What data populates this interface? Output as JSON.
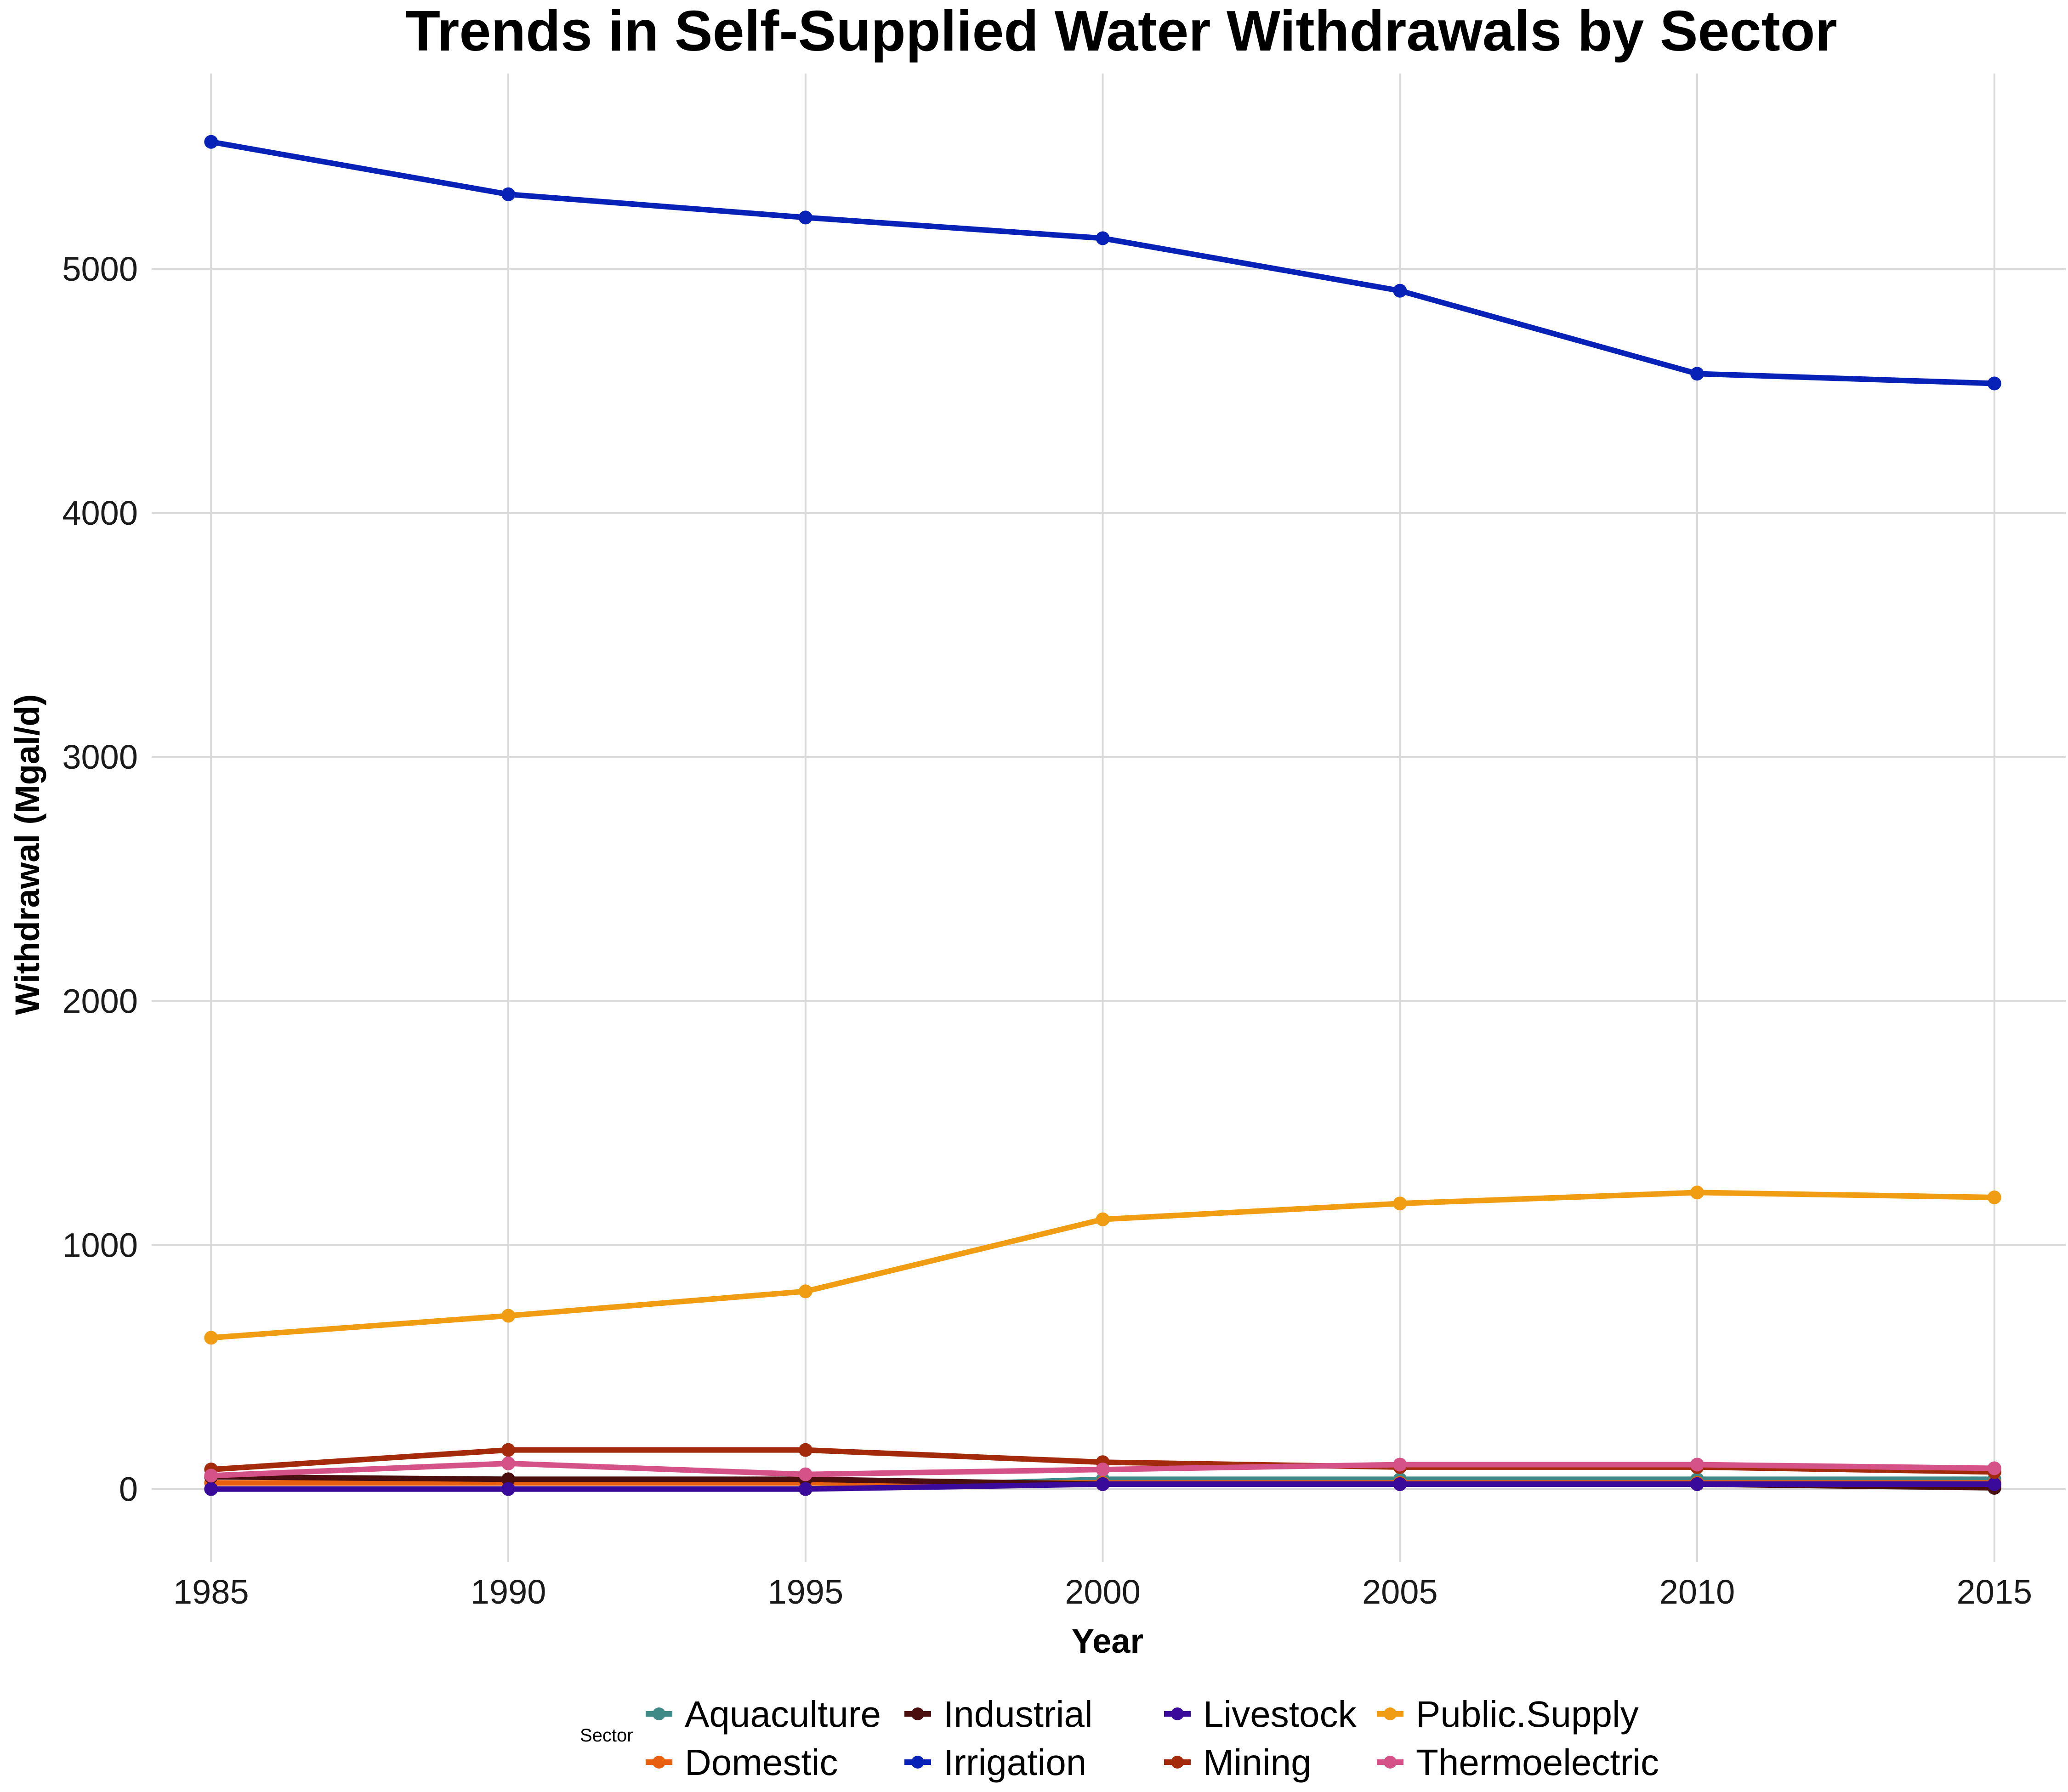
{
  "chart_data": {
    "type": "line",
    "title": "Trends in Self-Supplied Water Withdrawals by Sector",
    "xlabel": "Year",
    "ylabel": "Withdrawal (Mgal/d)",
    "x": [
      1985,
      1990,
      1995,
      2000,
      2005,
      2010,
      2015
    ],
    "x_ticks": [
      "1985",
      "1990",
      "1995",
      "2000",
      "2005",
      "2010",
      "2015"
    ],
    "y_ticks": [
      "0",
      "1000",
      "2000",
      "3000",
      "4000",
      "5000"
    ],
    "y_tick_values": [
      0,
      1000,
      2000,
      3000,
      4000,
      5000
    ],
    "xlim": [
      1984,
      2016.2
    ],
    "ylim": [
      -300,
      5800
    ],
    "grid": true,
    "legend_title": "Sector",
    "legend_position": "bottom",
    "series": [
      {
        "name": "Aquaculture",
        "color": "#3f8a86",
        "values": [
          0,
          0,
          0,
          40,
          40,
          40,
          40
        ]
      },
      {
        "name": "Domestic",
        "color": "#e8600f",
        "values": [
          25,
          25,
          25,
          25,
          25,
          25,
          25
        ]
      },
      {
        "name": "Industrial",
        "color": "#4a0e0e",
        "values": [
          50,
          40,
          40,
          20,
          20,
          20,
          5
        ]
      },
      {
        "name": "Irrigation",
        "color": "#0822b8",
        "values": [
          5520,
          5305,
          5210,
          5125,
          4910,
          4570,
          4530
        ]
      },
      {
        "name": "Livestock",
        "color": "#3a0a9a",
        "values": [
          0,
          0,
          0,
          20,
          20,
          20,
          20
        ]
      },
      {
        "name": "Mining",
        "color": "#a32a0a",
        "values": [
          80,
          160,
          160,
          110,
          90,
          90,
          70
        ]
      },
      {
        "name": "Public.Supply",
        "color": "#f09d14",
        "values": [
          620,
          710,
          810,
          1105,
          1170,
          1215,
          1195
        ]
      },
      {
        "name": "Thermoelectric",
        "color": "#d45287",
        "values": [
          55,
          105,
          60,
          80,
          100,
          100,
          85
        ]
      }
    ]
  }
}
